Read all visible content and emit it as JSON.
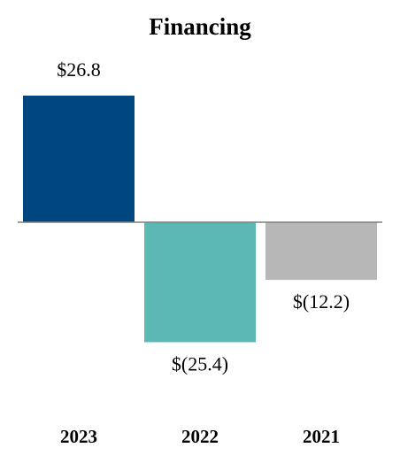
{
  "chart_data": {
    "type": "bar",
    "title": "Financing",
    "categories": [
      "2023",
      "2022",
      "2021"
    ],
    "values": [
      26.8,
      -25.4,
      -12.2
    ],
    "value_labels": [
      "$26.8",
      "$(25.4)",
      "$(12.2)"
    ],
    "colors": [
      "#00467f",
      "#5bb8b2",
      "#b7b7b7"
    ]
  }
}
